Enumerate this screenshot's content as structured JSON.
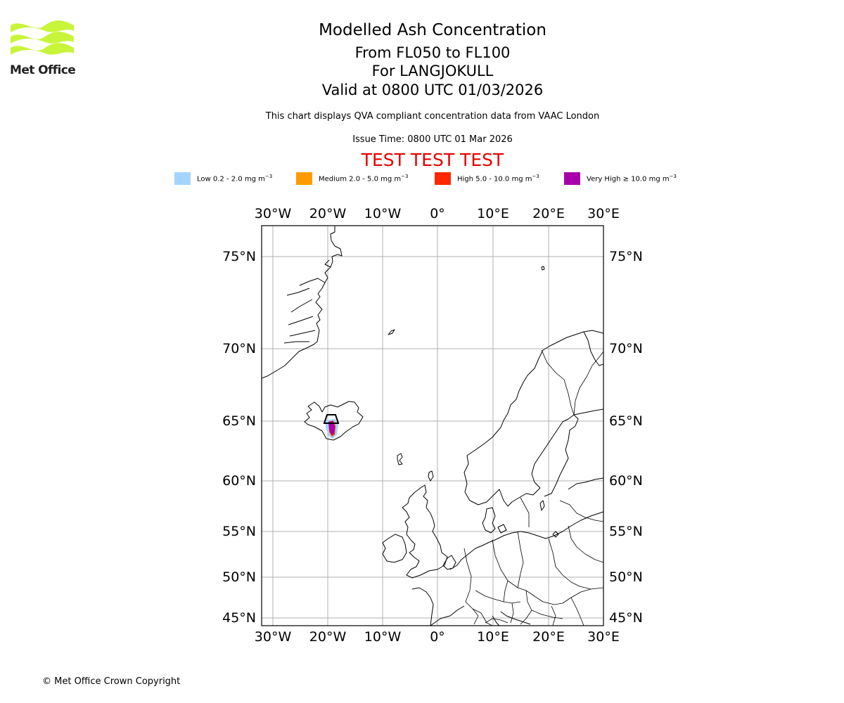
{
  "logo": {
    "text": "Met Office",
    "color": "#c8f53a"
  },
  "title": {
    "main": "Modelled Ash Concentration",
    "levels": "From FL050 to FL100",
    "volcano": "For LANGJOKULL",
    "valid": "Valid at 0800 UTC 01/03/2026"
  },
  "subtitle": "This chart displays QVA compliant concentration data from VAAC London",
  "issue_time": "Issue Time: 0800 UTC 01 Mar 2026",
  "test_banner": "TEST TEST TEST",
  "legend": [
    {
      "label": "Low 0.2 - 2.0 mg m",
      "color": "#a3d4ff"
    },
    {
      "label": "Medium 2.0 - 5.0 mg m",
      "color": "#ff9b00"
    },
    {
      "label": "High 5.0 - 10.0 mg m",
      "color": "#ff2800"
    },
    {
      "label": "Very High ≥ 10.0 mg m",
      "color": "#aa00aa"
    }
  ],
  "legend_unit_exponent": "−3",
  "map": {
    "lon_labels": [
      "30°W",
      "20°W",
      "10°W",
      "0°",
      "10°E",
      "20°E",
      "30°E"
    ],
    "lat_labels": [
      "75°N",
      "70°N",
      "65°N",
      "60°N",
      "55°N",
      "50°N",
      "45°N"
    ],
    "extent": {
      "lon_min": -32,
      "lon_max": 30,
      "lat_min": 44.5,
      "lat_max": 76.5
    },
    "gridline_color": "#b0b0b0",
    "coastline_color": "#000000"
  },
  "copyright": "© Met Office Crown Copyright"
}
